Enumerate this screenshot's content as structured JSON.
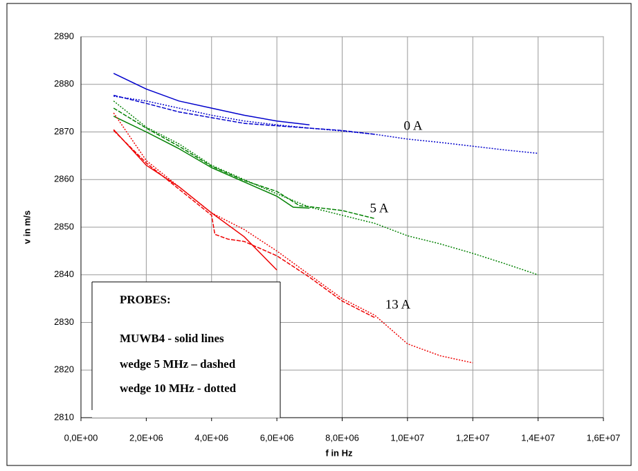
{
  "chart_data": {
    "type": "line",
    "x_label": "f in Hz",
    "y_label": "v in m/s",
    "xlim": [
      0,
      16000000
    ],
    "ylim": [
      2810,
      2890
    ],
    "xticks": [
      {
        "value": 0,
        "label": "0,0E+00"
      },
      {
        "value": 2000000,
        "label": "2,0E+06"
      },
      {
        "value": 4000000,
        "label": "4,0E+06"
      },
      {
        "value": 6000000,
        "label": "6,0E+06"
      },
      {
        "value": 8000000,
        "label": "8,0E+06"
      },
      {
        "value": 10000000,
        "label": "1,0E+07"
      },
      {
        "value": 12000000,
        "label": "1,2E+07"
      },
      {
        "value": 14000000,
        "label": "1,4E+07"
      },
      {
        "value": 16000000,
        "label": "1,6E+07"
      }
    ],
    "yticks": [
      2810,
      2820,
      2830,
      2840,
      2850,
      2860,
      2870,
      2880,
      2890
    ],
    "grid": true,
    "annotations": [
      "0 A",
      "5 A",
      "13 A"
    ],
    "probes_box": [
      "PROBES:",
      "MUWB4 - solid lines",
      "wedge 5 MHz – dashed",
      "wedge 10 MHz - dotted"
    ],
    "series": [
      {
        "color": "#0000cc",
        "dash": "solid",
        "x": [
          1000000,
          2000000,
          3000000,
          4000000,
          5000000,
          6000000,
          7000000
        ],
        "values": [
          2882.3,
          2879,
          2876.5,
          2875,
          2873.5,
          2872.3,
          2871.5
        ]
      },
      {
        "color": "#0000cc",
        "dash": "dashed",
        "x": [
          1000000,
          2000000,
          3000000,
          4000000,
          5000000,
          6000000,
          7000000,
          8000000,
          9000000
        ],
        "values": [
          2877.7,
          2876,
          2874.2,
          2873,
          2871.8,
          2871.3,
          2870.8,
          2870.3,
          2869.5
        ]
      },
      {
        "color": "#0000cc",
        "dash": "dotted",
        "x": [
          1000000,
          2000000,
          3000000,
          4000000,
          5000000,
          6000000,
          7000000,
          8000000,
          9000000,
          10000000,
          11000000,
          12000000,
          13000000,
          14000000
        ],
        "values": [
          2877.5,
          2876.5,
          2875,
          2873.5,
          2872.3,
          2871.5,
          2870.8,
          2870.2,
          2869.5,
          2868.5,
          2867.8,
          2867,
          2866.2,
          2865.5
        ]
      },
      {
        "color": "#008000",
        "dash": "solid",
        "x": [
          1000000,
          2000000,
          3000000,
          4000000,
          5000000,
          6000000,
          6500000,
          7000000
        ],
        "values": [
          2873.3,
          2870,
          2866.5,
          2862.5,
          2859.5,
          2856.5,
          2854.2,
          2854
        ]
      },
      {
        "color": "#008000",
        "dash": "dashed",
        "x": [
          1000000,
          2000000,
          3000000,
          4000000,
          5000000,
          6000000,
          6700000,
          7000000,
          8000000,
          9000000
        ],
        "values": [
          2875,
          2870.8,
          2867,
          2862.8,
          2859.8,
          2857.5,
          2854.5,
          2854.3,
          2853.5,
          2851.8
        ]
      },
      {
        "color": "#008000",
        "dash": "dotted",
        "x": [
          1000000,
          2000000,
          3000000,
          4000000,
          5000000,
          6000000,
          7000000,
          8000000,
          9000000,
          10000000,
          11000000,
          12000000,
          13000000,
          14000000
        ],
        "values": [
          2876.5,
          2871,
          2867.5,
          2863,
          2860,
          2857,
          2854.2,
          2852.5,
          2850.8,
          2848.2,
          2846.5,
          2844.5,
          2842.3,
          2840
        ]
      },
      {
        "color": "#ee0000",
        "dash": "solid",
        "x": [
          1000000,
          2000000,
          3000000,
          4000000,
          5000000,
          6000000
        ],
        "values": [
          2870.5,
          2863,
          2858.5,
          2853,
          2848,
          2841
        ]
      },
      {
        "color": "#ee0000",
        "dash": "dashed",
        "x": [
          1000000,
          2000000,
          3000000,
          4000000,
          4100000,
          4500000,
          5000000,
          6000000,
          7000000,
          8000000,
          9000000
        ],
        "values": [
          2870.3,
          2863.5,
          2858,
          2852.5,
          2848.5,
          2847.5,
          2847,
          2844,
          2839.5,
          2834.5,
          2831
        ]
      },
      {
        "color": "#ee0000",
        "dash": "dotted",
        "x": [
          1000000,
          2000000,
          3000000,
          4000000,
          5000000,
          6000000,
          7000000,
          8000000,
          9000000,
          10000000,
          11000000,
          12000000
        ],
        "values": [
          2874,
          2864,
          2858.5,
          2853,
          2849.5,
          2845,
          2840,
          2835,
          2831.5,
          2825.5,
          2823,
          2821.5
        ]
      }
    ]
  }
}
